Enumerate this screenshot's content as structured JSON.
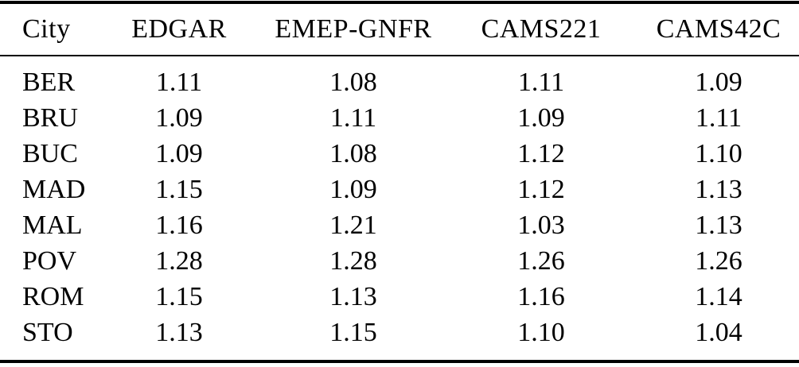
{
  "table": {
    "columns": [
      "City",
      "EDGAR",
      "EMEP-GNFR",
      "CAMS221",
      "CAMS42C"
    ],
    "rows": [
      {
        "city": "BER",
        "values": [
          "1.11",
          "1.08",
          "1.11",
          "1.09"
        ]
      },
      {
        "city": "BRU",
        "values": [
          "1.09",
          "1.11",
          "1.09",
          "1.11"
        ]
      },
      {
        "city": "BUC",
        "values": [
          "1.09",
          "1.08",
          "1.12",
          "1.10"
        ]
      },
      {
        "city": "MAD",
        "values": [
          "1.15",
          "1.09",
          "1.12",
          "1.13"
        ]
      },
      {
        "city": "MAL",
        "values": [
          "1.16",
          "1.21",
          "1.03",
          "1.13"
        ]
      },
      {
        "city": "POV",
        "values": [
          "1.28",
          "1.28",
          "1.26",
          "1.26"
        ]
      },
      {
        "city": "ROM",
        "values": [
          "1.15",
          "1.13",
          "1.16",
          "1.14"
        ]
      },
      {
        "city": "STO",
        "values": [
          "1.13",
          "1.15",
          "1.10",
          "1.04"
        ]
      }
    ]
  },
  "colors": {
    "text": "#000000",
    "background": "#ffffff",
    "rule": "#000000"
  }
}
